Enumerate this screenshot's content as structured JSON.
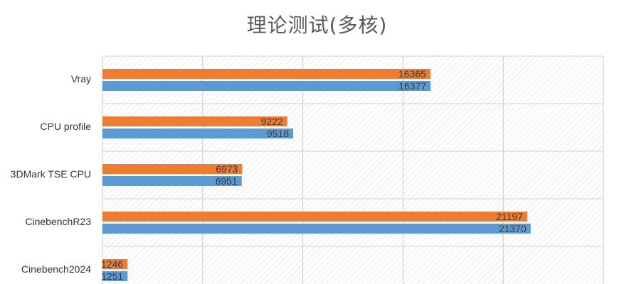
{
  "chart_data": {
    "type": "bar",
    "orientation": "horizontal",
    "title": "理论测试(多核)",
    "categories": [
      "Vray",
      "CPU profile",
      "3DMark TSE CPU",
      "CinebenchR23",
      "Cinebench2024"
    ],
    "series": [
      {
        "values": [
          16365,
          9222,
          6973,
          21197,
          1246
        ],
        "color": "#ED7D31"
      },
      {
        "values": [
          16377,
          9518,
          6951,
          21370,
          1251
        ],
        "color": "#5B9BD5"
      }
    ],
    "xlim": [
      0,
      25000
    ],
    "grid": true,
    "legend": "none"
  }
}
